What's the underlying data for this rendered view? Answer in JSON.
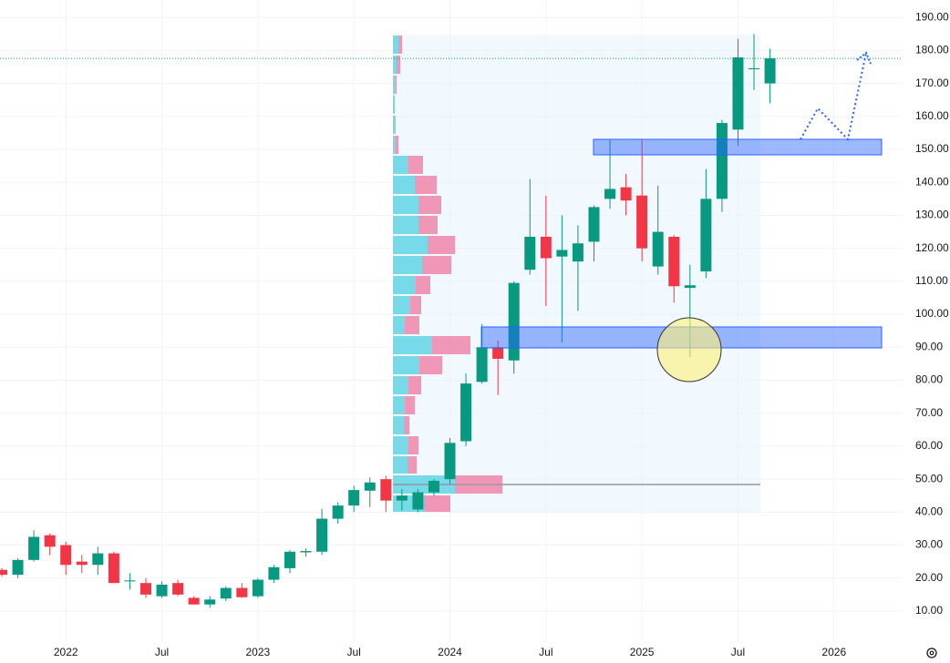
{
  "chart_data": {
    "type": "candlestick",
    "x": [
      "2021-09",
      "2021-10",
      "2021-11",
      "2021-12",
      "2022-01",
      "2022-02",
      "2022-03",
      "2022-04",
      "2022-05",
      "2022-06",
      "2022-07",
      "2022-08",
      "2022-09",
      "2022-10",
      "2022-11",
      "2022-12",
      "2023-01",
      "2023-02",
      "2023-03",
      "2023-04",
      "2023-05",
      "2023-06",
      "2023-07",
      "2023-08",
      "2023-09",
      "2023-10",
      "2023-11",
      "2023-12",
      "2024-01",
      "2024-02",
      "2024-03",
      "2024-04",
      "2024-05",
      "2024-06",
      "2024-07",
      "2024-08",
      "2024-09",
      "2024-10",
      "2024-11",
      "2024-12",
      "2025-01",
      "2025-02",
      "2025-03",
      "2025-04",
      "2025-05",
      "2025-06",
      "2025-07",
      "2025-08",
      "2025-09"
    ],
    "open": [
      22.5,
      21,
      25.5,
      33,
      30,
      25,
      24,
      27.5,
      19,
      18.5,
      14.5,
      18.5,
      14,
      12,
      13.8,
      17,
      14.5,
      19.5,
      23,
      27.8,
      28,
      38,
      42,
      46.5,
      50,
      43.5,
      40.8,
      46,
      50,
      61.5,
      79.5,
      90,
      86,
      113.5,
      123.5,
      117.5,
      116,
      122,
      135,
      138.5,
      136,
      114.5,
      123.5,
      108,
      113,
      135,
      156,
      174.3,
      170
    ],
    "high": [
      23,
      26,
      34.5,
      33.5,
      31,
      27,
      29.5,
      28,
      21.5,
      20,
      19,
      19.5,
      14.5,
      14.5,
      17.5,
      18.5,
      20,
      24,
      28.5,
      29,
      41,
      43,
      48,
      50.5,
      51,
      47,
      47,
      50,
      62.5,
      82,
      97,
      92,
      110,
      141,
      136,
      130,
      127,
      133,
      153,
      142.5,
      153,
      139,
      124,
      115,
      144,
      159,
      183.5,
      185,
      180.5
    ],
    "low": [
      20.5,
      20,
      25,
      27,
      21,
      21.5,
      21,
      18.5,
      16.5,
      14,
      14,
      14.5,
      12,
      11,
      13,
      14,
      14,
      18.5,
      21.5,
      26.5,
      27,
      36.5,
      40,
      41.5,
      40,
      40.5,
      40,
      45,
      48.5,
      60,
      79,
      75.5,
      82,
      112,
      102.5,
      91.5,
      101,
      116,
      132,
      130,
      116,
      112,
      103.5,
      87,
      111,
      131,
      151,
      168,
      164
    ],
    "close": [
      21,
      25.5,
      32.5,
      29.5,
      24,
      24,
      27.5,
      18.5,
      19.3,
      15,
      18,
      15,
      12,
      13.5,
      17,
      14.2,
      19.5,
      23.3,
      28,
      28.2,
      38,
      42,
      46.7,
      49,
      43.5,
      45,
      46,
      49.5,
      61,
      79,
      90,
      86.5,
      109.5,
      123.5,
      117,
      119.5,
      121.5,
      132.5,
      138,
      134.5,
      120,
      125,
      108.5,
      108.8,
      135,
      158,
      177.9,
      174.6,
      177.6
    ],
    "up_color": "#089981",
    "down_color": "#f23645",
    "xlim": [
      "2021-09",
      "2026-05"
    ],
    "xticks": [
      {
        "value": "2022-01",
        "label": "2022"
      },
      {
        "value": "2022-07",
        "label": "Jul"
      },
      {
        "value": "2023-01",
        "label": "2023"
      },
      {
        "value": "2023-07",
        "label": "Jul"
      },
      {
        "value": "2024-01",
        "label": "2024"
      },
      {
        "value": "2024-07",
        "label": "Jul"
      },
      {
        "value": "2025-01",
        "label": "2025"
      },
      {
        "value": "2025-07",
        "label": "Jul"
      },
      {
        "value": "2026-01",
        "label": "2026"
      }
    ],
    "ylim": [
      0.6,
      195.3
    ],
    "yticks": [
      {
        "value": 10,
        "label": "10.00"
      },
      {
        "value": 20,
        "label": "20.00"
      },
      {
        "value": 30,
        "label": "30.00"
      },
      {
        "value": 40,
        "label": "40.00"
      },
      {
        "value": 50,
        "label": "50.00"
      },
      {
        "value": 60,
        "label": "60.00"
      },
      {
        "value": 70,
        "label": "70.00"
      },
      {
        "value": 80,
        "label": "80.00"
      },
      {
        "value": 90,
        "label": "90.00"
      },
      {
        "value": 100,
        "label": "100.00"
      },
      {
        "value": 110,
        "label": "110.00"
      },
      {
        "value": 120,
        "label": "120.00"
      },
      {
        "value": 130,
        "label": "130.00"
      },
      {
        "value": 140,
        "label": "140.00"
      },
      {
        "value": 150,
        "label": "150.00"
      },
      {
        "value": 160,
        "label": "160.00"
      },
      {
        "value": 170,
        "label": "170.00"
      },
      {
        "value": 180,
        "label": "180.00"
      },
      {
        "value": 190,
        "label": "190.00"
      }
    ],
    "grid": true
  }
}
